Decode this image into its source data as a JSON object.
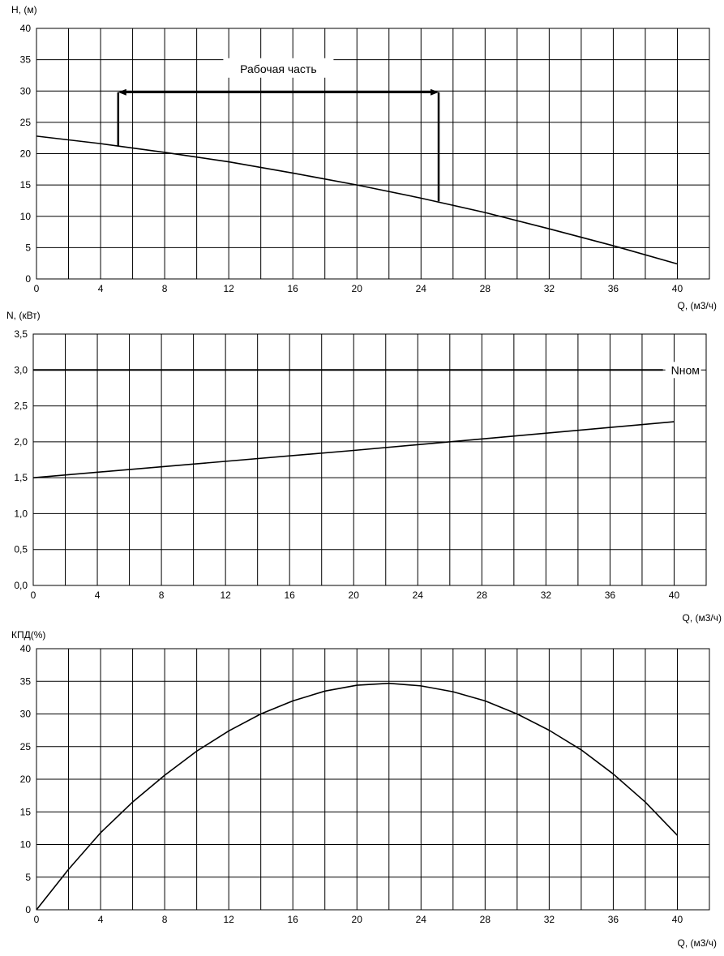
{
  "chart_data": [
    {
      "type": "line",
      "ylabel": "H, (м)",
      "xlabel": "Q, (м3/ч)",
      "xlim": [
        0,
        42
      ],
      "ylim": [
        0,
        40
      ],
      "x_ticks": [
        "0",
        "4",
        "8",
        "12",
        "16",
        "20",
        "24",
        "28",
        "32",
        "36",
        "40"
      ],
      "y_ticks": [
        "0",
        "5",
        "10",
        "15",
        "20",
        "25",
        "30",
        "35",
        "40"
      ],
      "x_tick_values": [
        0,
        4,
        8,
        12,
        16,
        20,
        24,
        28,
        32,
        36,
        40
      ],
      "y_tick_values": [
        0,
        5,
        10,
        15,
        20,
        25,
        30,
        35,
        40
      ],
      "grid": true,
      "series": [
        {
          "x": [
            0,
            4,
            8,
            12,
            16,
            20,
            24,
            28,
            32,
            36,
            40
          ],
          "y": [
            22.8,
            21.6,
            20.2,
            18.7,
            16.9,
            15.0,
            12.9,
            10.6,
            8.0,
            5.3,
            2.4
          ]
        }
      ],
      "annotation": {
        "text": "Рабочая часть",
        "x_start": 5.1,
        "x_end": 25.1,
        "y": 29.8,
        "y_start_bottom": 21.2,
        "y_end_bottom": 12.4
      }
    },
    {
      "type": "line",
      "ylabel": "N, (кВт)",
      "xlabel": "Q, (м3/ч)",
      "xlim": [
        0,
        42
      ],
      "ylim": [
        0,
        3.5
      ],
      "x_ticks": [
        "0",
        "4",
        "8",
        "12",
        "16",
        "20",
        "24",
        "28",
        "32",
        "36",
        "40"
      ],
      "y_ticks": [
        "0,0",
        "0,5",
        "1,0",
        "1,5",
        "2,0",
        "2,5",
        "3,0",
        "3,5"
      ],
      "x_tick_values": [
        0,
        4,
        8,
        12,
        16,
        20,
        24,
        28,
        32,
        36,
        40
      ],
      "y_tick_values": [
        0,
        0.5,
        1.0,
        1.5,
        2.0,
        2.5,
        3.0,
        3.5
      ],
      "grid": true,
      "series": [
        {
          "x": [
            0,
            10,
            20,
            30,
            40
          ],
          "y": [
            1.5,
            1.69,
            1.88,
            2.08,
            2.28
          ]
        }
      ],
      "reference_line": {
        "label": "Nном",
        "y": 3.0,
        "x_start": 0,
        "x_end": 39.3
      }
    },
    {
      "type": "line",
      "ylabel": "КПД(%)",
      "xlabel": "Q, (м3/ч)",
      "xlim": [
        0,
        42
      ],
      "ylim": [
        0,
        40
      ],
      "x_ticks": [
        "0",
        "4",
        "8",
        "12",
        "16",
        "20",
        "24",
        "28",
        "32",
        "36",
        "40"
      ],
      "y_ticks": [
        "0",
        "5",
        "10",
        "15",
        "20",
        "25",
        "30",
        "35",
        "40"
      ],
      "x_tick_values": [
        0,
        4,
        8,
        12,
        16,
        20,
        24,
        28,
        32,
        36,
        40
      ],
      "y_tick_values": [
        0,
        5,
        10,
        15,
        20,
        25,
        30,
        35,
        40
      ],
      "grid": true,
      "series": [
        {
          "x": [
            0,
            2,
            4,
            6,
            8,
            10,
            12,
            14,
            16,
            18,
            20,
            22,
            24,
            26,
            28,
            30,
            32,
            34,
            36,
            38,
            40
          ],
          "y": [
            0,
            6.2,
            11.8,
            16.5,
            20.6,
            24.3,
            27.4,
            30.0,
            32.0,
            33.5,
            34.4,
            34.7,
            34.3,
            33.4,
            32.0,
            30.0,
            27.5,
            24.5,
            20.8,
            16.5,
            11.4
          ]
        }
      ]
    }
  ]
}
